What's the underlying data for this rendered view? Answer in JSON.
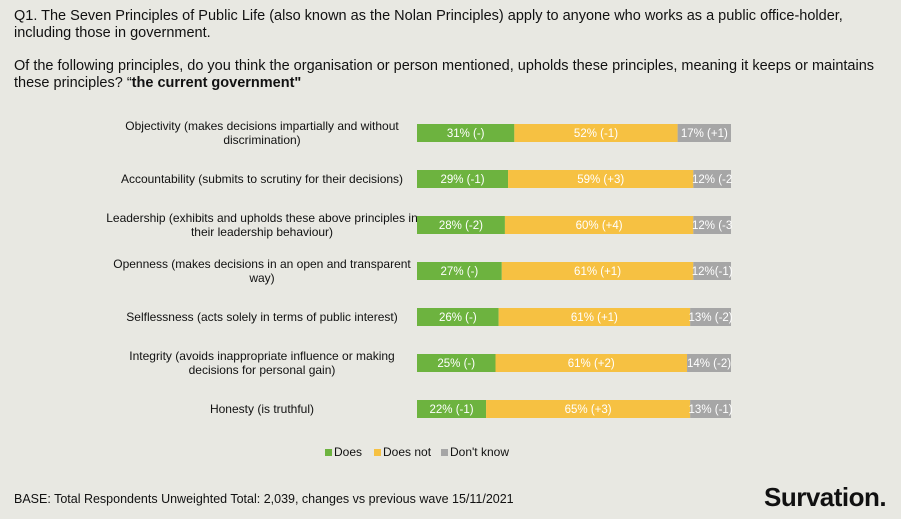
{
  "question": {
    "line1": "Q1. The Seven Principles of Public Life (also known as the Nolan Principles) apply to anyone who works as a public office-holder, including those in government.",
    "line2_pre": "Of the following principles, do you think the organisation or person mentioned, upholds these principles, meaning it keeps or maintains these principles? “",
    "line2_bold": "the current government\""
  },
  "footer": {
    "base": "BASE: Total Respondents Unweighted Total: 2,039, changes vs previous wave 15/11/2021",
    "logo": "Survation."
  },
  "colors": {
    "does": "#6db33f",
    "does_not": "#f6c142",
    "dont_know": "#a6a6a6"
  },
  "chart_data": {
    "type": "bar",
    "orientation": "horizontal",
    "stacked": true,
    "xlim": [
      0,
      100
    ],
    "legend_position": "bottom",
    "grid": false,
    "categories": [
      [
        "Objectivity (makes decisions impartially and without",
        "discrimination)"
      ],
      [
        "Accountability (submits to scrutiny for their decisions)"
      ],
      [
        "Leadership (exhibits and upholds these above principles in",
        "their leadership behaviour)"
      ],
      [
        "Openness (makes decisions in an open and transparent",
        "way)"
      ],
      [
        "Selflessness (acts solely in terms of public interest)"
      ],
      [
        "Integrity (avoids inappropriate influence or making",
        "decisions for personal gain)"
      ],
      [
        "Honesty (is truthful)"
      ]
    ],
    "series": [
      {
        "name": "Does",
        "values": [
          31,
          29,
          28,
          27,
          26,
          25,
          22
        ],
        "labels": [
          "31% (-)",
          "29% (-1)",
          "28% (-2)",
          "27% (-)",
          "26% (-)",
          "25% (-)",
          "22% (-1)"
        ]
      },
      {
        "name": "Does not",
        "values": [
          52,
          59,
          60,
          61,
          61,
          61,
          65
        ],
        "labels": [
          "52% (-1)",
          "59% (+3)",
          "60% (+4)",
          "61% (+1)",
          "61% (+1)",
          "61% (+2)",
          "65% (+3)"
        ]
      },
      {
        "name": "Don't know",
        "values": [
          17,
          12,
          12,
          12,
          13,
          14,
          13
        ],
        "labels": [
          "17% (+1)",
          "12% (-2",
          "12% (-3",
          "12%(-1)",
          "13% (-2)",
          "14% (-2)",
          "13% (-1)"
        ]
      }
    ]
  }
}
